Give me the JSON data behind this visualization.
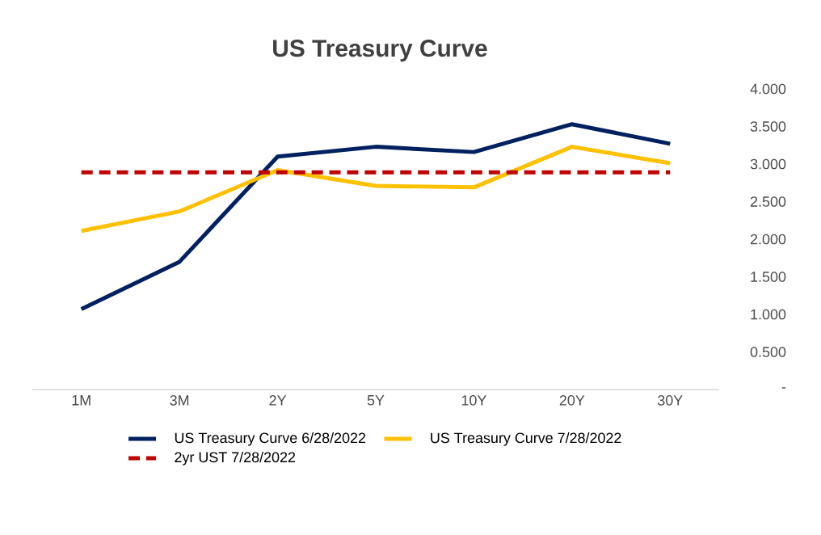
{
  "chart_data": {
    "type": "line",
    "title": "US Treasury Curve",
    "categories": [
      "1M",
      "3M",
      "2Y",
      "5Y",
      "10Y",
      "20Y",
      "30Y"
    ],
    "series": [
      {
        "name": "US Treasury Curve 6/28/2022",
        "color": "#002060",
        "values": [
          1.07,
          1.7,
          3.1,
          3.23,
          3.16,
          3.53,
          3.27
        ]
      },
      {
        "name": "US Treasury Curve 7/28/2022",
        "color": "#ffc000",
        "values": [
          2.11,
          2.37,
          2.92,
          2.71,
          2.69,
          3.23,
          3.01
        ]
      },
      {
        "name": "2yr UST 7/28/2022",
        "color": "#c00000",
        "line_style": "dashed",
        "values": [
          2.89,
          2.89,
          2.89,
          2.89,
          2.89,
          2.89,
          2.89
        ]
      }
    ],
    "ylim": [
      0,
      4
    ],
    "yticks": [
      {
        "value": 0,
        "label": "-"
      },
      {
        "value": 0.5,
        "label": "0.500"
      },
      {
        "value": 1,
        "label": "1.000"
      },
      {
        "value": 1.5,
        "label": "1.500"
      },
      {
        "value": 2,
        "label": "2.000"
      },
      {
        "value": 2.5,
        "label": "2.500"
      },
      {
        "value": 3,
        "label": "3.000"
      },
      {
        "value": 3.5,
        "label": "3.500"
      },
      {
        "value": 4,
        "label": "4.000"
      }
    ],
    "grid": false,
    "legend": "bottom",
    "marker": "none",
    "line_style": "solid"
  }
}
